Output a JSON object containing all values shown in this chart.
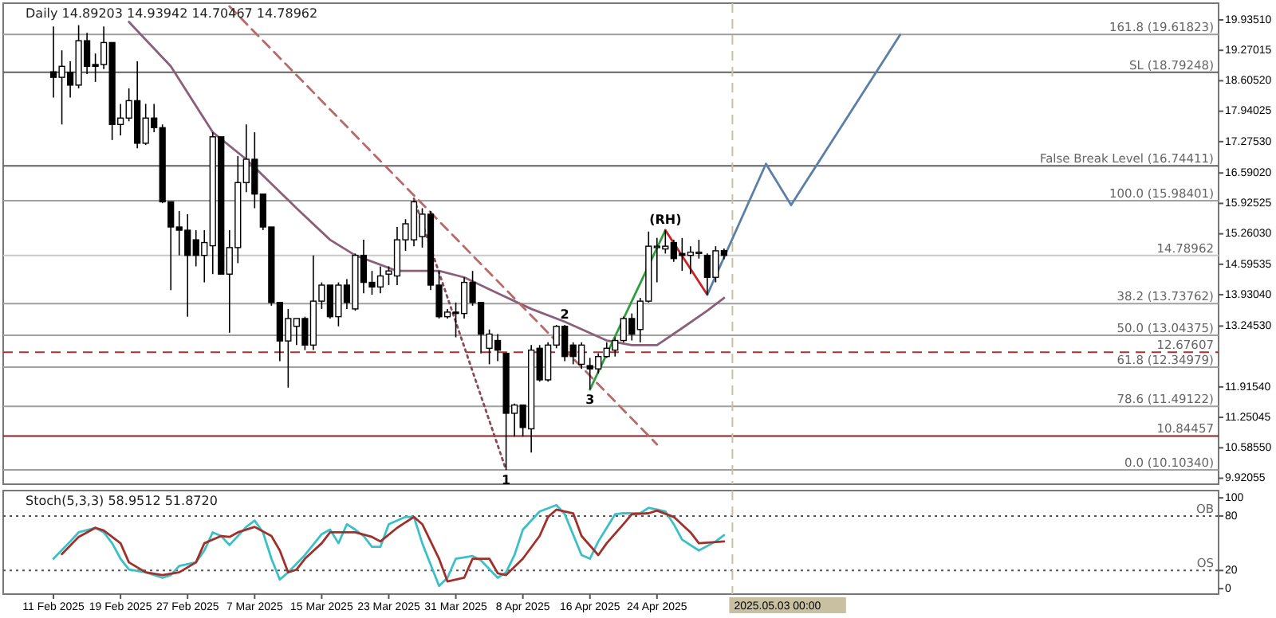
{
  "chart_data": [
    {
      "type": "candlestick",
      "title": "Daily 14.89203 14.93942 14.70467 14.78962",
      "tick_labels": "y",
      "x": [
        "2025-02-11",
        "2025-02-12",
        "2025-02-13",
        "2025-02-14",
        "2025-02-15",
        "2025-02-16",
        "2025-02-17",
        "2025-02-18",
        "2025-02-19",
        "2025-02-20",
        "2025-02-21",
        "2025-02-22",
        "2025-02-23",
        "2025-02-24",
        "2025-02-25",
        "2025-02-26",
        "2025-02-27",
        "2025-02-28",
        "2025-03-01",
        "2025-03-02",
        "2025-03-03",
        "2025-03-04",
        "2025-03-05",
        "2025-03-06",
        "2025-03-07",
        "2025-03-08",
        "2025-03-09",
        "2025-03-10",
        "2025-03-11",
        "2025-03-12",
        "2025-03-13",
        "2025-03-14",
        "2025-03-15",
        "2025-03-16",
        "2025-03-17",
        "2025-03-18",
        "2025-03-19",
        "2025-03-20",
        "2025-03-21",
        "2025-03-22",
        "2025-03-23",
        "2025-03-24",
        "2025-03-25",
        "2025-03-26",
        "2025-03-27",
        "2025-03-28",
        "2025-03-29",
        "2025-03-30",
        "2025-03-31",
        "2025-04-01",
        "2025-04-02",
        "2025-04-03",
        "2025-04-04",
        "2025-04-05",
        "2025-04-06",
        "2025-04-07",
        "2025-04-08",
        "2025-04-09",
        "2025-04-10",
        "2025-04-11",
        "2025-04-12",
        "2025-04-13",
        "2025-04-14",
        "2025-04-15",
        "2025-04-16",
        "2025-04-17",
        "2025-04-18",
        "2025-04-19",
        "2025-04-20",
        "2025-04-21",
        "2025-04-22",
        "2025-04-23",
        "2025-04-24",
        "2025-04-25",
        "2025-04-26",
        "2025-04-27",
        "2025-04-28",
        "2025-04-29",
        "2025-04-30",
        "2025-05-01",
        "2025-05-02"
      ],
      "ohlc": [
        [
          18.8,
          19.79,
          18.24,
          18.68
        ],
        [
          18.68,
          19.27,
          17.65,
          18.92
        ],
        [
          18.79,
          19.03,
          18.24,
          18.51
        ],
        [
          18.51,
          19.82,
          18.44,
          19.48
        ],
        [
          19.48,
          19.65,
          18.75,
          18.92
        ],
        [
          18.96,
          19.2,
          18.58,
          18.92
        ],
        [
          18.96,
          19.79,
          18.86,
          19.44
        ],
        [
          19.44,
          19.44,
          17.31,
          17.65
        ],
        [
          17.65,
          18.1,
          17.41,
          17.79
        ],
        [
          17.79,
          18.44,
          17.72,
          18.17
        ],
        [
          18.17,
          19.03,
          17.13,
          17.24
        ],
        [
          17.24,
          18.1,
          17.2,
          17.79
        ],
        [
          17.79,
          18.1,
          17.48,
          17.58
        ],
        [
          17.58,
          17.65,
          15.93,
          15.96
        ],
        [
          15.96,
          15.96,
          14.03,
          15.41
        ],
        [
          15.41,
          15.76,
          14.79,
          15.34
        ],
        [
          15.34,
          15.69,
          13.45,
          14.79
        ],
        [
          15.13,
          15.34,
          14.55,
          14.79
        ],
        [
          14.79,
          15.34,
          14.2,
          15.07
        ],
        [
          15.0,
          17.48,
          14.38,
          17.38
        ],
        [
          17.38,
          17.38,
          14.38,
          14.38
        ],
        [
          14.38,
          15.34,
          13.1,
          14.96
        ],
        [
          14.96,
          16.96,
          14.62,
          16.38
        ],
        [
          16.38,
          17.65,
          16.17,
          16.89
        ],
        [
          16.89,
          17.48,
          15.82,
          16.13
        ],
        [
          16.13,
          16.13,
          15.34,
          15.41
        ],
        [
          15.41,
          15.41,
          13.69,
          13.76
        ],
        [
          13.76,
          13.76,
          12.48,
          12.92
        ],
        [
          12.92,
          13.62,
          11.9,
          13.41
        ],
        [
          13.24,
          13.41,
          12.83,
          13.41
        ],
        [
          13.41,
          13.45,
          12.72,
          12.83
        ],
        [
          12.83,
          14.79,
          12.72,
          13.79
        ],
        [
          13.79,
          14.2,
          13.62,
          14.14
        ],
        [
          14.14,
          14.14,
          13.41,
          13.45
        ],
        [
          13.45,
          14.2,
          13.24,
          14.14
        ],
        [
          14.14,
          14.27,
          13.62,
          13.76
        ],
        [
          13.62,
          14.83,
          13.58,
          14.79
        ],
        [
          14.79,
          15.13,
          13.96,
          14.2
        ],
        [
          14.2,
          14.45,
          13.93,
          14.1
        ],
        [
          14.1,
          14.55,
          13.96,
          14.34
        ],
        [
          14.38,
          14.55,
          14.14,
          14.45
        ],
        [
          14.34,
          15.41,
          14.14,
          15.13
        ],
        [
          15.13,
          15.58,
          14.89,
          15.48
        ],
        [
          15.13,
          15.99,
          14.99,
          15.96
        ],
        [
          15.2,
          15.82,
          14.96,
          15.69
        ],
        [
          15.69,
          15.76,
          14.03,
          14.14
        ],
        [
          14.14,
          14.45,
          13.41,
          13.45
        ],
        [
          13.45,
          13.62,
          13.41,
          13.55
        ],
        [
          13.55,
          13.76,
          13.0,
          13.52
        ],
        [
          13.52,
          14.31,
          13.41,
          14.2
        ],
        [
          14.2,
          14.45,
          13.69,
          13.76
        ],
        [
          13.76,
          13.76,
          12.65,
          13.07
        ],
        [
          12.76,
          13.17,
          12.41,
          13.07
        ],
        [
          12.93,
          13.07,
          12.48,
          12.72
        ],
        [
          12.65,
          12.65,
          10.1,
          11.34
        ],
        [
          11.34,
          11.55,
          10.83,
          11.52
        ],
        [
          11.52,
          11.52,
          10.83,
          11.03
        ],
        [
          11.0,
          12.83,
          10.48,
          12.72
        ],
        [
          12.76,
          12.83,
          12.03,
          12.07
        ],
        [
          12.07,
          12.89,
          12.03,
          12.83
        ],
        [
          12.83,
          13.27,
          12.76,
          13.24
        ],
        [
          13.24,
          13.27,
          12.48,
          12.58
        ],
        [
          12.83,
          12.89,
          12.41,
          12.58
        ],
        [
          12.41,
          12.89,
          12.31,
          12.83
        ],
        [
          12.38,
          12.55,
          11.86,
          12.31
        ],
        [
          12.31,
          12.65,
          12.21,
          12.58
        ],
        [
          12.58,
          12.89,
          12.55,
          12.76
        ],
        [
          12.72,
          13.0,
          12.58,
          12.93
        ],
        [
          12.93,
          13.45,
          12.89,
          13.41
        ],
        [
          13.41,
          13.52,
          12.93,
          13.07
        ],
        [
          13.17,
          13.86,
          12.89,
          13.79
        ],
        [
          13.79,
          15.31,
          13.76,
          14.99
        ],
        [
          14.96,
          15.17,
          14.2,
          14.99
        ],
        [
          14.93,
          15.34,
          14.83,
          14.99
        ],
        [
          15.07,
          15.13,
          14.65,
          14.72
        ],
        [
          14.83,
          15.17,
          14.45,
          14.79
        ],
        [
          14.79,
          14.99,
          14.38,
          14.86
        ],
        [
          14.86,
          15.13,
          14.72,
          14.86
        ],
        [
          14.79,
          14.83,
          13.93,
          14.31
        ],
        [
          14.31,
          14.99,
          14.2,
          14.89
        ],
        [
          14.89203,
          14.93942,
          14.70467,
          14.78962
        ]
      ],
      "series": [
        {
          "type": "line",
          "color": "#8b5f7a",
          "x": [
            "2025-02-20",
            "2025-02-25",
            "2025-03-02",
            "2025-03-06",
            "2025-03-12",
            "2025-03-16",
            "2025-03-19",
            "2025-03-24",
            "2025-03-29",
            "2025-04-01",
            "2025-04-05",
            "2025-04-09",
            "2025-04-13",
            "2025-04-18",
            "2025-04-21",
            "2025-04-24",
            "2025-04-27",
            "2025-04-30",
            "2025-05-02"
          ],
          "values": [
            19.89,
            18.92,
            17.48,
            16.89,
            15.82,
            15.13,
            14.79,
            14.45,
            14.45,
            14.31,
            13.96,
            13.62,
            13.34,
            12.93,
            12.83,
            12.83,
            13.2,
            13.58,
            13.86
          ]
        },
        {
          "type": "line",
          "color": "#b86a6a",
          "line_style": "dashed",
          "x": [
            "2025-03-04",
            "2025-04-24"
          ],
          "values": [
            20.23,
            10.66
          ]
        },
        {
          "type": "line",
          "color": "#8a4a5a",
          "line_style": "dotted",
          "x": [
            "2025-03-26",
            "2025-04-06"
          ],
          "values": [
            16.03,
            10.1
          ]
        },
        {
          "type": "line",
          "color": "#2e9e3e",
          "x": [
            "2025-04-16",
            "2025-04-25"
          ],
          "values": [
            11.86,
            15.34
          ]
        },
        {
          "type": "line",
          "color": "#cc2222",
          "x": [
            "2025-04-25",
            "2025-04-30"
          ],
          "values": [
            15.34,
            13.93
          ]
        },
        {
          "type": "line",
          "color": "#5b7fa6",
          "x": [
            "2025-04-30",
            "2025-05-07",
            "2025-05-10",
            "2025-05-23"
          ],
          "values": [
            13.93,
            16.79,
            15.89,
            19.61
          ]
        }
      ],
      "xlim": [
        "2025-02-05",
        "2025-06-30"
      ],
      "ylim": [
        9.79,
        20.3
      ],
      "yticks": [
        {
          "value": 19.9351,
          "label": "19.93510"
        },
        19.27015,
        {
          "value": 18.6052,
          "label": "18.60520"
        },
        17.94025,
        {
          "value": 17.2753,
          "label": "17.27530"
        },
        {
          "value": 16.5902,
          "label": "16.59020"
        },
        15.92525,
        {
          "value": 15.2603,
          "label": "15.26030"
        },
        14.59535,
        {
          "value": 13.9304,
          "label": "13.93040"
        },
        {
          "value": 13.2453,
          "label": "13.24530"
        },
        {
          "value": 11.9154,
          "label": "11.91540"
        },
        11.25045,
        {
          "value": 10.5855,
          "label": "10.58550"
        },
        9.92055
      ],
      "ref_lines": [
        {
          "axis": "y",
          "value": 19.61823,
          "label": "161.8 (19.61823)",
          "color": "#a0a0a0"
        },
        {
          "axis": "y",
          "value": 18.79248,
          "label": "SL (18.79248)",
          "color": "#606060"
        },
        {
          "axis": "y",
          "value": 16.74411,
          "label": "False Break Level (16.74411)",
          "color": "#606060"
        },
        {
          "axis": "y",
          "value": 15.98401,
          "label": "100.0 (15.98401)",
          "color": "#a0a0a0"
        },
        {
          "axis": "y",
          "value": 14.78962,
          "label": "14.78962",
          "color": "#c8c8c8"
        },
        {
          "axis": "y",
          "value": 13.73762,
          "label": "38.2 (13.73762)",
          "color": "#a0a0a0"
        },
        {
          "axis": "y",
          "value": 13.04375,
          "label": "50.0 (13.04375)",
          "color": "#a0a0a0"
        },
        {
          "axis": "y",
          "value": 12.67607,
          "label": "12.67607",
          "color": "#b03030",
          "line_style": "dashed"
        },
        {
          "axis": "y",
          "value": 12.34979,
          "label": "61.8 (12.34979)",
          "color": "#a0a0a0"
        },
        {
          "axis": "y",
          "value": 11.49122,
          "label": "78.6 (11.49122)",
          "color": "#a0a0a0"
        },
        {
          "axis": "y",
          "value": 10.84457,
          "label": "10.84457",
          "color": "#8b2020"
        },
        {
          "axis": "y",
          "value": 10.1034,
          "label": "0.0 (10.10340)",
          "color": "#a0a0a0"
        },
        {
          "axis": "x",
          "value": "2025-05-03",
          "color": "#c8c0a0",
          "line_style": "dashed"
        }
      ],
      "annotations": [
        {
          "text": "(RH)",
          "x": "2025-04-25",
          "y": 15.34
        },
        {
          "text": "2",
          "x": "2025-04-13",
          "y": 13.27
        },
        {
          "text": "3",
          "x": "2025-04-16",
          "y": 11.86
        },
        {
          "text": "1",
          "x": "2025-04-06",
          "y": 10.1
        }
      ]
    },
    {
      "type": "line",
      "title": "Stoch(5,3,3) 58.9512 51.8720",
      "series": [
        {
          "color": "#3cc0c8",
          "x": [
            "2025-02-11",
            "2025-02-13",
            "2025-02-14",
            "2025-02-16",
            "2025-02-17",
            "2025-02-18",
            "2025-02-19",
            "2025-02-20",
            "2025-02-22",
            "2025-02-24",
            "2025-02-25",
            "2025-02-26",
            "2025-02-28",
            "2025-03-01",
            "2025-03-02",
            "2025-03-03",
            "2025-03-04",
            "2025-03-06",
            "2025-03-07",
            "2025-03-08",
            "2025-03-09",
            "2025-03-10",
            "2025-03-11",
            "2025-03-13",
            "2025-03-15",
            "2025-03-16",
            "2025-03-17",
            "2025-03-18",
            "2025-03-19",
            "2025-03-20",
            "2025-03-21",
            "2025-03-22",
            "2025-03-23",
            "2025-03-25",
            "2025-03-26",
            "2025-03-27",
            "2025-03-29",
            "2025-03-30",
            "2025-03-31",
            "2025-04-02",
            "2025-04-03",
            "2025-04-05",
            "2025-04-06",
            "2025-04-07",
            "2025-04-08",
            "2025-04-10",
            "2025-04-12",
            "2025-04-13",
            "2025-04-15",
            "2025-04-16",
            "2025-04-17",
            "2025-04-19",
            "2025-04-20",
            "2025-04-22",
            "2025-04-23",
            "2025-04-25",
            "2025-04-26",
            "2025-04-27",
            "2025-04-29",
            "2025-05-01",
            "2025-05-02"
          ],
          "values": [
            33,
            52,
            62,
            67,
            62,
            50,
            33,
            21,
            18,
            12,
            15,
            25,
            29,
            42,
            62,
            58,
            48,
            68,
            75,
            62,
            33,
            10,
            18,
            37,
            60,
            65,
            50,
            71,
            65,
            58,
            46,
            46,
            71,
            79,
            79,
            50,
            3,
            12,
            33,
            36,
            31,
            12,
            18,
            37,
            65,
            85,
            92,
            82,
            37,
            33,
            52,
            82,
            83,
            83,
            89,
            85,
            71,
            54,
            42,
            52,
            59
          ]
        },
        {
          "color": "#a0302a",
          "x": [
            "2025-02-12",
            "2025-02-14",
            "2025-02-16",
            "2025-02-17",
            "2025-02-19",
            "2025-02-20",
            "2025-02-22",
            "2025-02-24",
            "2025-02-26",
            "2025-02-28",
            "2025-03-01",
            "2025-03-03",
            "2025-03-04",
            "2025-03-05",
            "2025-03-07",
            "2025-03-09",
            "2025-03-10",
            "2025-03-11",
            "2025-03-12",
            "2025-03-13",
            "2025-03-15",
            "2025-03-16",
            "2025-03-18",
            "2025-03-19",
            "2025-03-21",
            "2025-03-22",
            "2025-03-24",
            "2025-03-26",
            "2025-03-27",
            "2025-03-29",
            "2025-03-30",
            "2025-04-01",
            "2025-04-02",
            "2025-04-04",
            "2025-04-05",
            "2025-04-06",
            "2025-04-08",
            "2025-04-10",
            "2025-04-11",
            "2025-04-12",
            "2025-04-14",
            "2025-04-15",
            "2025-04-17",
            "2025-04-18",
            "2025-04-20",
            "2025-04-21",
            "2025-04-23",
            "2025-04-24",
            "2025-04-26",
            "2025-04-28",
            "2025-04-29",
            "2025-05-02"
          ],
          "values": [
            38,
            57,
            67,
            64,
            50,
            29,
            18,
            15,
            18,
            29,
            50,
            58,
            57,
            62,
            68,
            58,
            42,
            18,
            21,
            33,
            50,
            62,
            62,
            62,
            57,
            52,
            67,
            79,
            71,
            33,
            8,
            12,
            33,
            33,
            17,
            15,
            33,
            58,
            79,
            87,
            83,
            58,
            37,
            50,
            71,
            82,
            83,
            86,
            79,
            62,
            50,
            52
          ]
        }
      ],
      "xlim": [
        "2025-02-05",
        "2025-06-30"
      ],
      "ylim": [
        -6,
        108
      ],
      "yticks": [
        0,
        20,
        80,
        100
      ],
      "xticks": [
        {
          "value": "2025-02-11",
          "label": "11 Feb 2025"
        },
        {
          "value": "2025-02-19",
          "label": "19 Feb 2025"
        },
        {
          "value": "2025-02-27",
          "label": "27 Feb 2025"
        },
        {
          "value": "2025-03-07",
          "label": "7 Mar 2025"
        },
        {
          "value": "2025-03-15",
          "label": "15 Mar 2025"
        },
        {
          "value": "2025-03-23",
          "label": "23 Mar 2025"
        },
        {
          "value": "2025-03-31",
          "label": "31 Mar 2025"
        },
        {
          "value": "2025-04-08",
          "label": "8 Apr 2025"
        },
        {
          "value": "2025-04-16",
          "label": "16 Apr 2025"
        },
        {
          "value": "2025-04-24",
          "label": "24 Apr 2025"
        }
      ],
      "ref_lines": [
        {
          "axis": "y",
          "value": 80,
          "label": "OB",
          "color": "#555555",
          "line_style": "dotted"
        },
        {
          "axis": "y",
          "value": 20,
          "label": "OS",
          "color": "#555555",
          "line_style": "dotted"
        },
        {
          "axis": "x",
          "value": "2025-05-03",
          "label": "2025.05.03 00:00",
          "color": "#c8c0a0",
          "line_style": "dashed"
        }
      ]
    }
  ]
}
